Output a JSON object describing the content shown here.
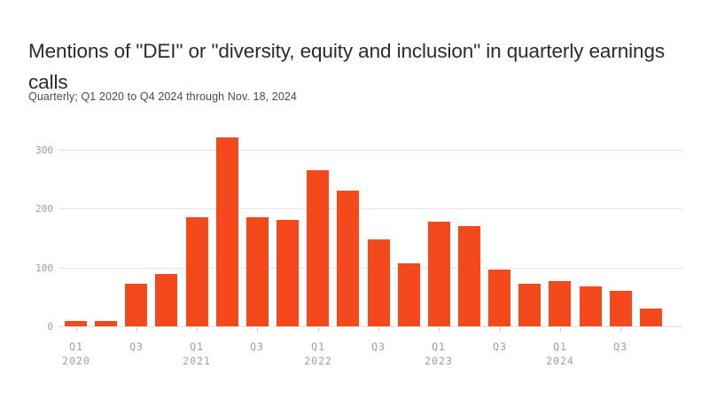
{
  "header": {
    "title": "Mentions of \"DEI\" or \"diversity, equity and inclusion\" in quarterly earnings calls",
    "subtitle": "Quarterly; Q1 2020 to Q4 2024 through Nov. 18, 2024"
  },
  "colors": {
    "bar": "#f4491d",
    "gridline": "#e4e4e4",
    "baseline": "#dcdcdc",
    "axis_text": "#9e9e9e",
    "title_text": "#2b2b2b",
    "subtitle_text": "#4a4a4a",
    "background": "#ffffff"
  },
  "chart_data": {
    "type": "bar",
    "title": "Mentions of \"DEI\" or \"diversity, equity and inclusion\" in quarterly earnings calls",
    "subtitle": "Quarterly; Q1 2020 to Q4 2024 through Nov. 18, 2024",
    "xlabel": "",
    "ylabel": "",
    "categories": [
      "Q1 2020",
      "Q2 2020",
      "Q3 2020",
      "Q4 2020",
      "Q1 2021",
      "Q2 2021",
      "Q3 2021",
      "Q4 2021",
      "Q1 2022",
      "Q2 2022",
      "Q3 2022",
      "Q4 2022",
      "Q1 2023",
      "Q2 2023",
      "Q3 2023",
      "Q4 2023",
      "Q1 2024",
      "Q2 2024",
      "Q3 2024",
      "Q4 2024"
    ],
    "values": [
      9,
      9,
      73,
      89,
      186,
      321,
      185,
      181,
      265,
      231,
      147,
      107,
      178,
      171,
      96,
      73,
      77,
      68,
      60,
      30
    ],
    "ylim": [
      0,
      330
    ],
    "yticks": [
      0,
      100,
      200,
      300
    ],
    "grid": "horizontal",
    "legend": "none",
    "x_ticks": [
      {
        "index": 0,
        "quarter": "Q1",
        "year": "2020"
      },
      {
        "index": 2,
        "quarter": "Q3",
        "year": ""
      },
      {
        "index": 4,
        "quarter": "Q1",
        "year": "2021"
      },
      {
        "index": 6,
        "quarter": "Q3",
        "year": ""
      },
      {
        "index": 8,
        "quarter": "Q1",
        "year": "2022"
      },
      {
        "index": 10,
        "quarter": "Q3",
        "year": ""
      },
      {
        "index": 12,
        "quarter": "Q1",
        "year": "2023"
      },
      {
        "index": 14,
        "quarter": "Q3",
        "year": ""
      },
      {
        "index": 16,
        "quarter": "Q1",
        "year": "2024"
      },
      {
        "index": 18,
        "quarter": "Q3",
        "year": ""
      }
    ]
  }
}
